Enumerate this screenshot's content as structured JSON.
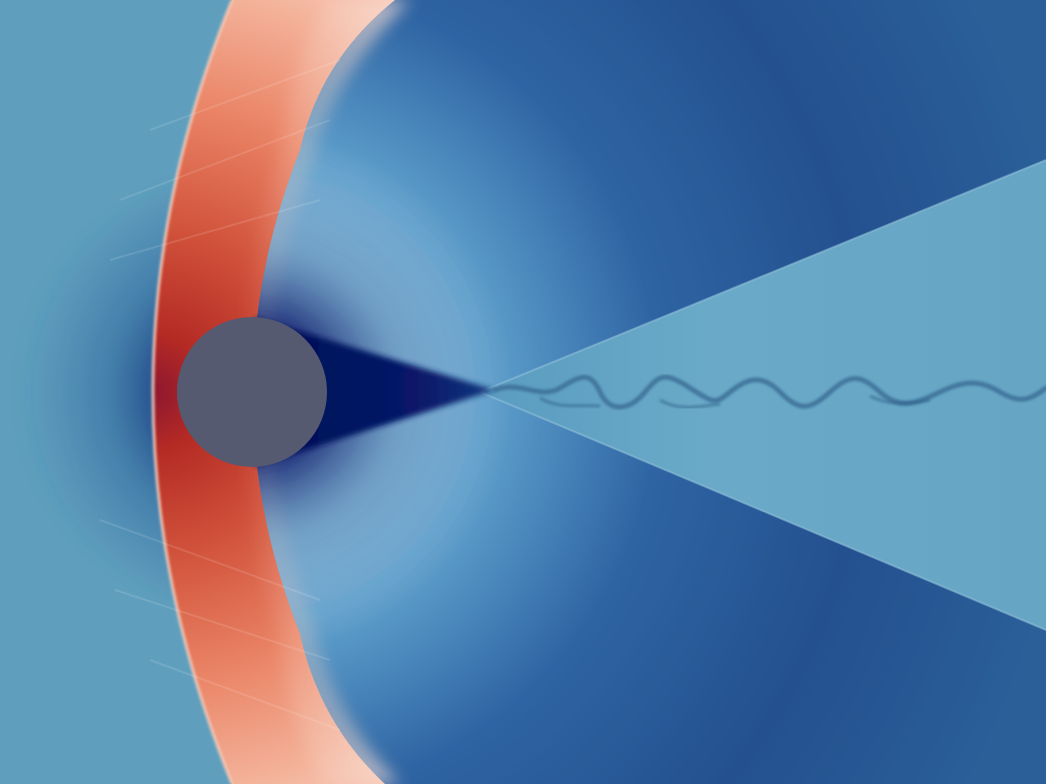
{
  "image": {
    "kind": "flow-field-visualization",
    "colors": {
      "freestream": "#5f9fbd",
      "shock_hot": "#a01e1e",
      "shock_warm": "#e8765a",
      "shock_pale": "#f8d2c2",
      "expansion_light": "#dff2fa",
      "expansion_mid": "#3d84b8",
      "expansion_deep": "#1d4586",
      "wake_core": "#04115c",
      "wake_region": "#6aaac6",
      "body": "#555a70"
    },
    "features": [
      "bow-shock",
      "circular-body",
      "expansion-fan",
      "wake-core",
      "oblique-wake-shock",
      "vortex-street"
    ]
  }
}
